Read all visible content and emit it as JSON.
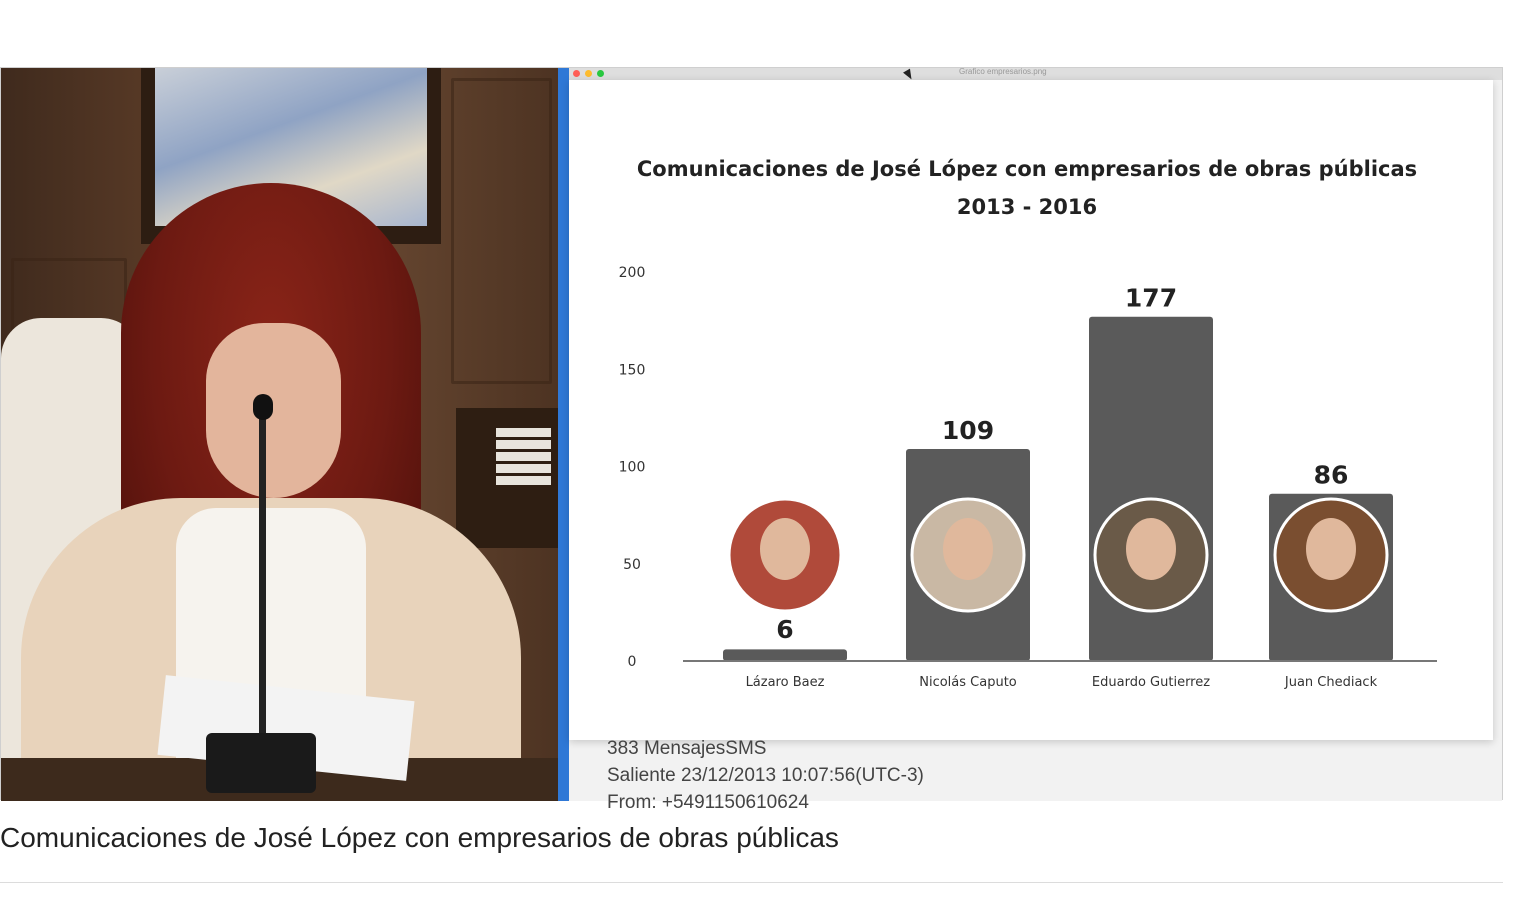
{
  "chart_data": {
    "type": "bar",
    "title": "Comunicaciones de José López con empresarios de obras públicas",
    "subtitle": "2013 - 2016",
    "categories": [
      "Lázaro Baez",
      "Nicolás Caputo",
      "Eduardo Gutierrez",
      "Juan Chediack"
    ],
    "values": [
      6,
      109,
      177,
      86
    ],
    "data_labels": [
      "6",
      "109",
      "177",
      "86"
    ],
    "yticks": [
      "0",
      "50",
      "100",
      "150",
      "200"
    ],
    "ylim": [
      0,
      200
    ],
    "xlabel": "",
    "ylabel": "",
    "grid": false,
    "legend": "none",
    "bar_color": "#5a5a5a",
    "portrait_colors": [
      "#b04a3a",
      "#c9b8a4",
      "#6a5a48",
      "#7a4e30"
    ]
  },
  "screen": {
    "window_title": "Grafico empresarios.png",
    "sms_lines": [
      "383 MensajesSMS",
      "Saliente 23/12/2013 10:07:56(UTC-3)",
      "From: +5491150610624"
    ]
  },
  "caption": "Comunicaciones de José López con empresarios de obras públicas",
  "colors": {
    "divider": "#2f78d6"
  }
}
